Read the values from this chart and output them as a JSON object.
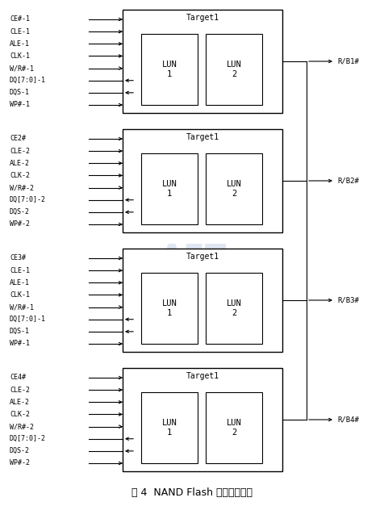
{
  "title": "图 4  NAND Flash 芯片存储结构",
  "background_color": "#ffffff",
  "blocks": [
    {
      "id": 1,
      "signals": [
        "CE#-1",
        "CLE-1",
        "ALE-1",
        "CLK-1",
        "W/R#-1",
        "DQ[7:0]-1",
        "DQS-1",
        "WP#-1"
      ],
      "right_label": "R/B1#",
      "dq_idx": 5,
      "dqs_idx": 6,
      "target_label": "Target1",
      "lun1_label": "LUN\n1",
      "lun2_label": "LUN\n2"
    },
    {
      "id": 2,
      "signals": [
        "CE2#",
        "CLE-2",
        "ALE-2",
        "CLK-2",
        "W/R#-2",
        "DQ[7:0]-2",
        "DQS-2",
        "WP#-2"
      ],
      "right_label": "R/B2#",
      "dq_idx": 5,
      "dqs_idx": 6,
      "target_label": "Target1",
      "lun1_label": "LUN\n1",
      "lun2_label": "LUN\n2"
    },
    {
      "id": 3,
      "signals": [
        "CE3#",
        "CLE-1",
        "ALE-1",
        "CLK-1",
        "W/R#-1",
        "DQ[7:0]-1",
        "DQS-1",
        "WP#-1"
      ],
      "right_label": "R/B3#",
      "dq_idx": 5,
      "dqs_idx": 6,
      "target_label": "Target1",
      "lun1_label": "LUN\n1",
      "lun2_label": "LUN\n2"
    },
    {
      "id": 4,
      "signals": [
        "CE4#",
        "CLE-2",
        "ALE-2",
        "CLK-2",
        "W/R#-2",
        "DQ[7:0]-2",
        "DQS-2",
        "WP#-2"
      ],
      "right_label": "R/B4#",
      "dq_idx": 5,
      "dqs_idx": 6,
      "target_label": "Target1",
      "lun1_label": "LUN\n1",
      "lun2_label": "LUN\n2"
    }
  ],
  "line_color": "#000000",
  "text_color": "#000000",
  "fs_signal": 6.0,
  "fs_target": 7.0,
  "fs_lun": 7.5,
  "fs_title": 9.0,
  "fs_rb": 6.5
}
